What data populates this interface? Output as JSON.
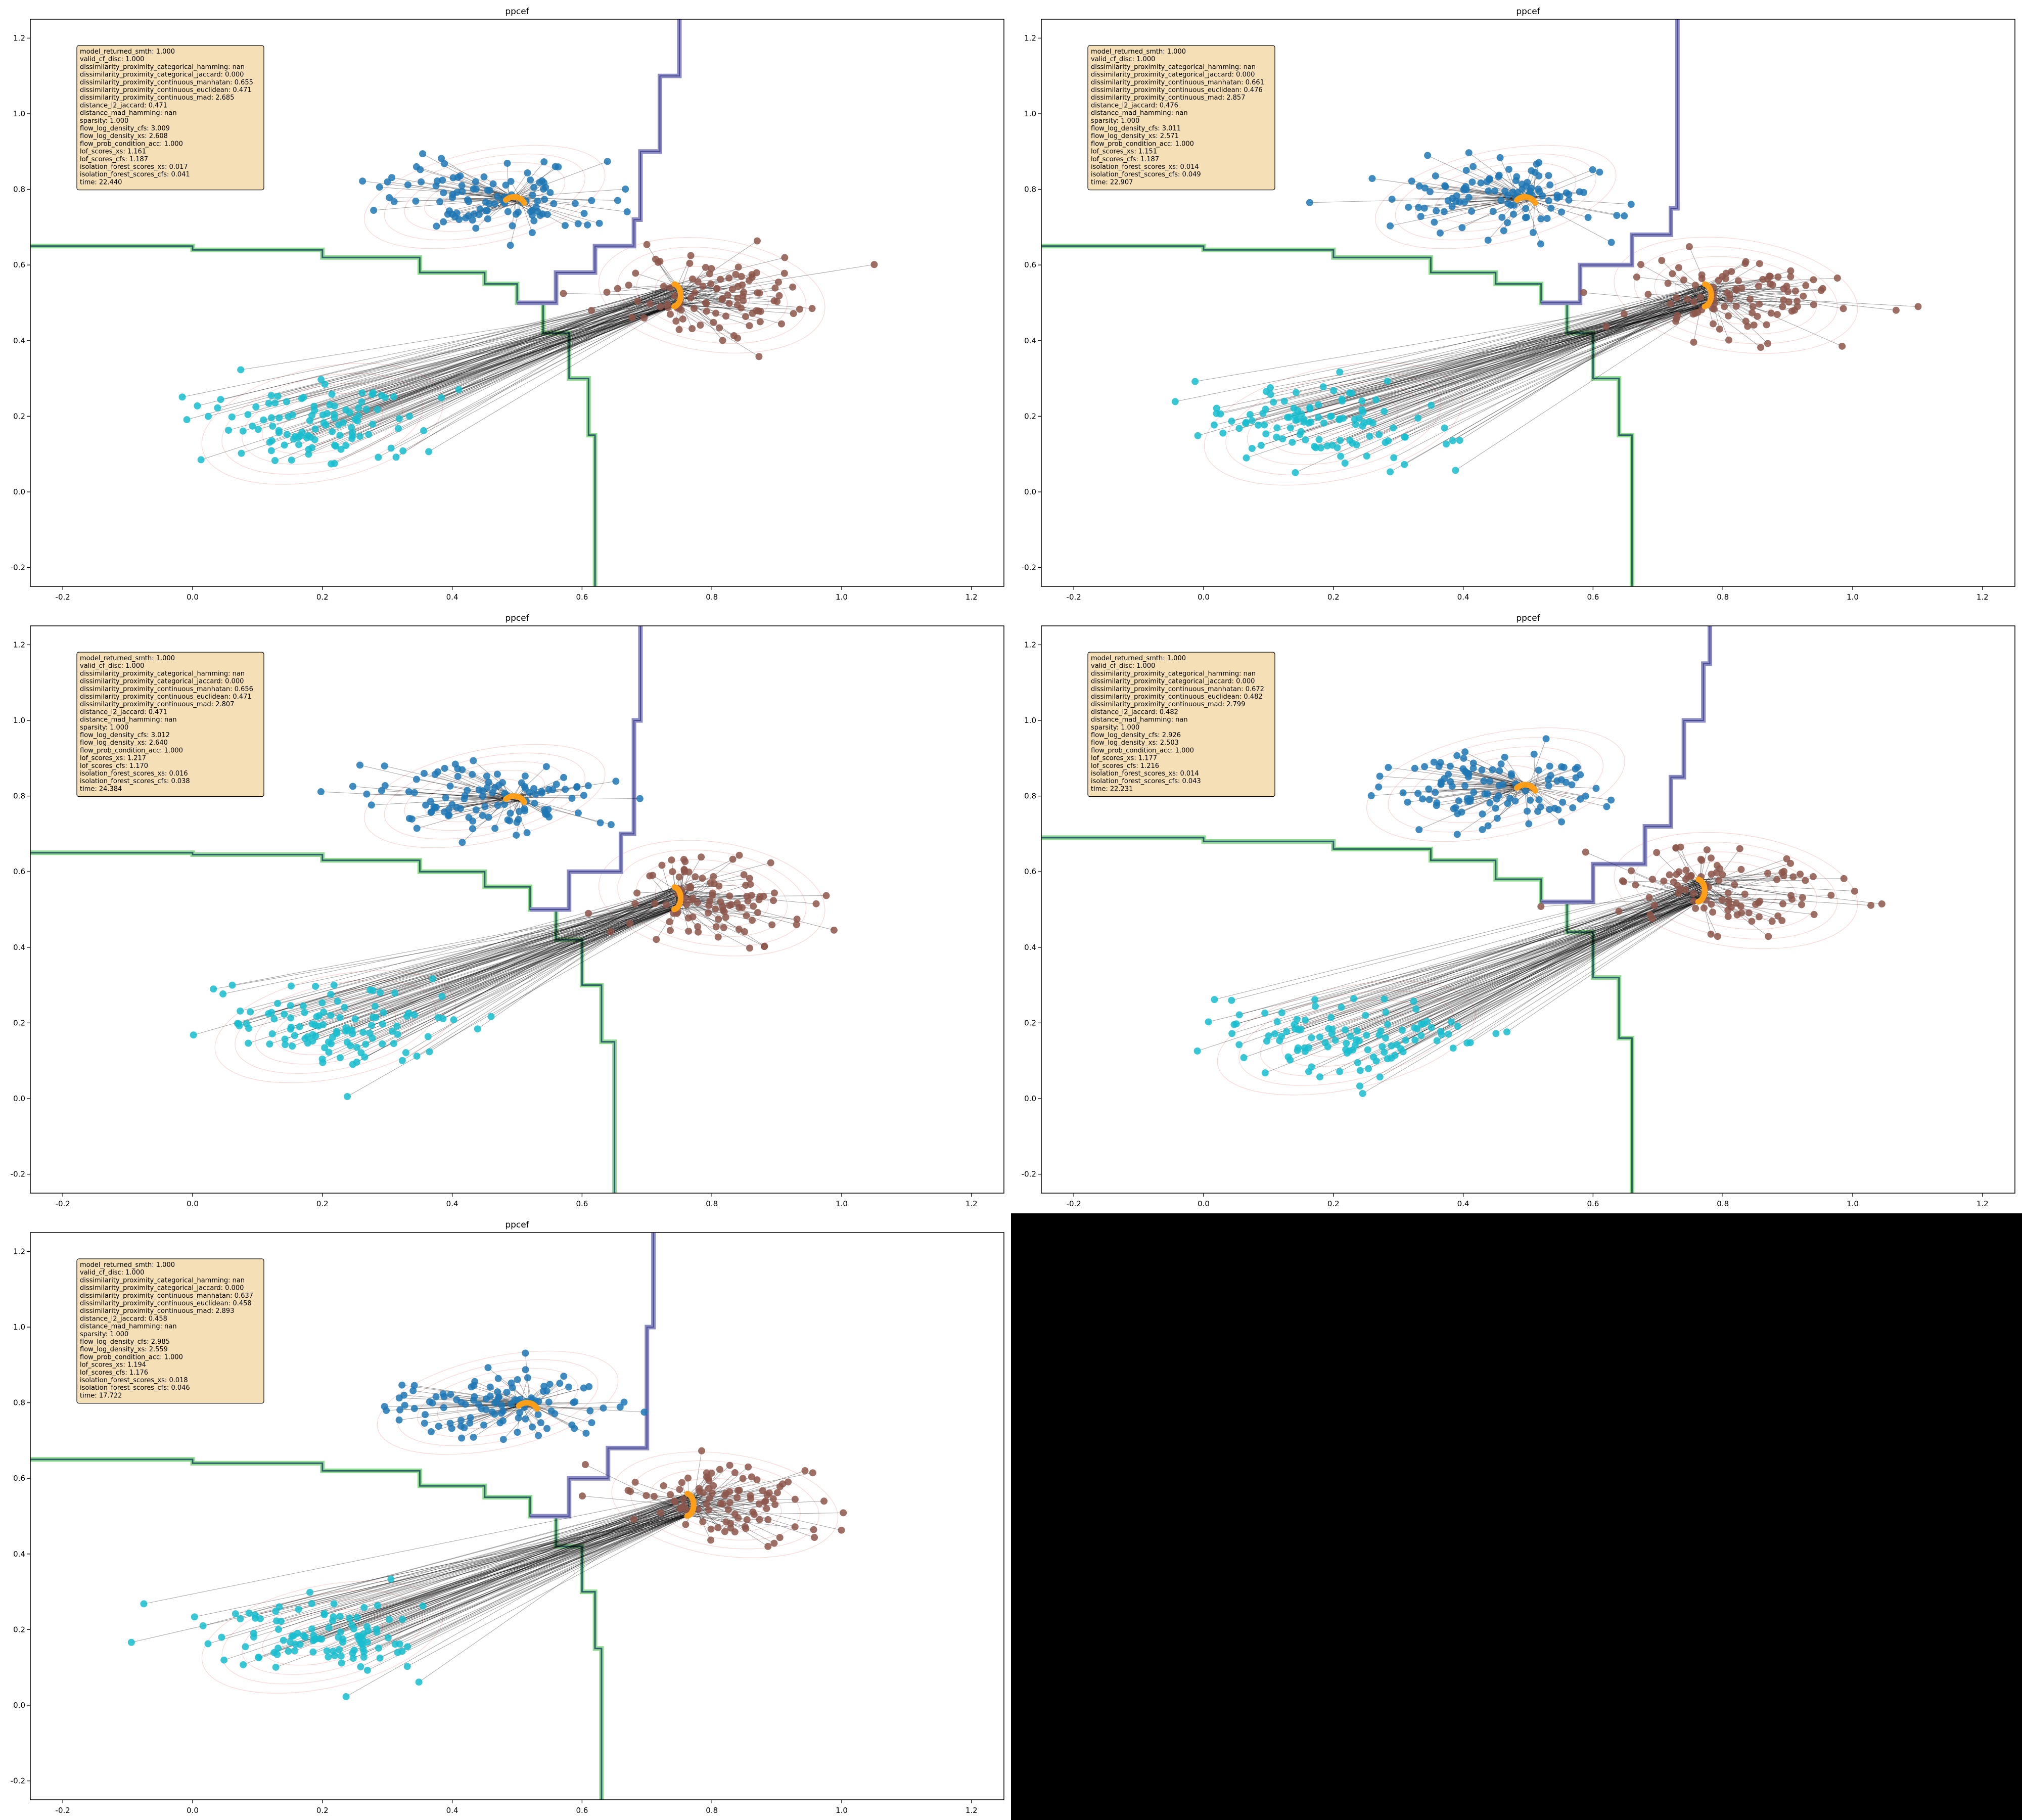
{
  "figure": {
    "background": "#ffffff",
    "empty_panel_color": "#000000"
  },
  "colors": {
    "class_0": "#1f77b4",
    "class_1": "#8c564b",
    "class_2": "#17becf",
    "counterfactual": "#ff9f1a",
    "arrow": "#000000",
    "boundary_purple": "#8c8cc4",
    "boundary_green": "#8fdc8f",
    "boundary_dark": "#2f5f6f",
    "density_contour": "#f4b4b4",
    "info_box_bg": "#f5deb3"
  },
  "chart_data": [
    {
      "type": "scatter",
      "title": "ppcef",
      "xlim": [
        -0.25,
        1.25
      ],
      "ylim": [
        -0.25,
        1.25
      ],
      "x_ticks": [
        "-0.2",
        "0.0",
        "0.2",
        "0.4",
        "0.6",
        "0.8",
        "1.0",
        "1.2"
      ],
      "y_ticks": [
        "-0.2",
        "0.0",
        "0.2",
        "0.4",
        "0.6",
        "0.8",
        "1.0",
        "1.2"
      ],
      "metrics": [
        "model_returned_smth: 1.000",
        "valid_cf_disc: 1.000",
        "dissimilarity_proximity_categorical_hamming: nan",
        "dissimilarity_proximity_categorical_jaccard: 0.000",
        "dissimilarity_proximity_continuous_manhatan: 0.655",
        "dissimilarity_proximity_continuous_euclidean: 0.471",
        "dissimilarity_proximity_continuous_mad: 2.685",
        "distance_l2_jaccard: 0.471",
        "distance_mad_hamming: nan",
        "sparsity: 1.000",
        "flow_log_density_cfs: 3.009",
        "flow_log_density_xs: 2.608",
        "flow_prob_condition_acc: 1.000",
        "lof_scores_xs: 1.161",
        "lof_scores_cfs: 1.187",
        "isolation_forest_scores_xs: 0.017",
        "isolation_forest_scores_cfs: 0.041",
        "time: 22.440"
      ],
      "clusters": [
        {
          "center": [
            0.45,
            0.78
          ],
          "spread": [
            0.07,
            0.045
          ],
          "n": 110
        },
        {
          "center": [
            0.8,
            0.52
          ],
          "spread": [
            0.065,
            0.055
          ],
          "n": 100
        },
        {
          "center": [
            0.2,
            0.18
          ],
          "spread": [
            0.07,
            0.055
          ],
          "n": 110
        }
      ],
      "cf_target_center": [
        0.75,
        0.52
      ],
      "boundary_green": [
        [
          -0.25,
          0.65
        ],
        [
          0.0,
          0.64
        ],
        [
          0.2,
          0.62
        ],
        [
          0.35,
          0.58
        ],
        [
          0.45,
          0.55
        ],
        [
          0.5,
          0.5
        ],
        [
          0.54,
          0.42
        ],
        [
          0.58,
          0.3
        ],
        [
          0.61,
          0.15
        ],
        [
          0.62,
          0.0
        ],
        [
          0.62,
          -0.25
        ]
      ],
      "boundary_purple": [
        [
          0.5,
          0.5
        ],
        [
          0.56,
          0.58
        ],
        [
          0.62,
          0.65
        ],
        [
          0.68,
          0.72
        ],
        [
          0.69,
          0.9
        ],
        [
          0.72,
          1.1
        ],
        [
          0.75,
          1.25
        ]
      ]
    },
    {
      "type": "scatter",
      "title": "ppcef",
      "xlim": [
        -0.25,
        1.25
      ],
      "ylim": [
        -0.25,
        1.25
      ],
      "x_ticks": [
        "-0.2",
        "0.0",
        "0.2",
        "0.4",
        "0.6",
        "0.8",
        "1.0",
        "1.2"
      ],
      "y_ticks": [
        "-0.2",
        "0.0",
        "0.2",
        "0.4",
        "0.6",
        "0.8",
        "1.0",
        "1.2"
      ],
      "metrics": [
        "model_returned_smth: 1.000",
        "valid_cf_disc: 1.000",
        "dissimilarity_proximity_categorical_hamming: nan",
        "dissimilarity_proximity_categorical_jaccard: 0.000",
        "dissimilarity_proximity_continuous_manhatan: 0.661",
        "dissimilarity_proximity_continuous_euclidean: 0.476",
        "dissimilarity_proximity_continuous_mad: 2.857",
        "distance_l2_jaccard: 0.476",
        "distance_mad_hamming: nan",
        "sparsity: 1.000",
        "flow_log_density_cfs: 3.011",
        "flow_log_density_xs: 2.571",
        "flow_prob_condition_acc: 1.000",
        "lof_scores_xs: 1.151",
        "lof_scores_cfs: 1.187",
        "isolation_forest_scores_xs: 0.014",
        "isolation_forest_scores_cfs: 0.049",
        "time: 22.907"
      ],
      "clusters": [
        {
          "center": [
            0.45,
            0.78
          ],
          "spread": [
            0.07,
            0.045
          ],
          "n": 110
        },
        {
          "center": [
            0.82,
            0.52
          ],
          "spread": [
            0.07,
            0.055
          ],
          "n": 100
        },
        {
          "center": [
            0.2,
            0.18
          ],
          "spread": [
            0.075,
            0.055
          ],
          "n": 110
        }
      ],
      "cf_target_center": [
        0.78,
        0.52
      ],
      "boundary_green": [
        [
          -0.25,
          0.65
        ],
        [
          0.0,
          0.64
        ],
        [
          0.2,
          0.62
        ],
        [
          0.35,
          0.58
        ],
        [
          0.45,
          0.55
        ],
        [
          0.52,
          0.5
        ],
        [
          0.56,
          0.42
        ],
        [
          0.6,
          0.3
        ],
        [
          0.64,
          0.15
        ],
        [
          0.66,
          0.0
        ],
        [
          0.66,
          -0.25
        ]
      ],
      "boundary_purple": [
        [
          0.52,
          0.5
        ],
        [
          0.58,
          0.6
        ],
        [
          0.66,
          0.68
        ],
        [
          0.72,
          0.75
        ],
        [
          0.73,
          0.95
        ],
        [
          0.73,
          1.25
        ]
      ]
    },
    {
      "type": "scatter",
      "title": "ppcef",
      "xlim": [
        -0.25,
        1.25
      ],
      "ylim": [
        -0.25,
        1.25
      ],
      "x_ticks": [
        "-0.2",
        "0.0",
        "0.2",
        "0.4",
        "0.6",
        "0.8",
        "1.0",
        "1.2"
      ],
      "y_ticks": [
        "-0.2",
        "0.0",
        "0.2",
        "0.4",
        "0.6",
        "0.8",
        "1.0",
        "1.2"
      ],
      "metrics": [
        "model_returned_smth: 1.000",
        "valid_cf_disc: 1.000",
        "dissimilarity_proximity_categorical_hamming: nan",
        "dissimilarity_proximity_categorical_jaccard: 0.000",
        "dissimilarity_proximity_continuous_manhatan: 0.656",
        "dissimilarity_proximity_continuous_euclidean: 0.471",
        "dissimilarity_proximity_continuous_mad: 2.807",
        "distance_l2_jaccard: 0.471",
        "distance_mad_hamming: nan",
        "sparsity: 1.000",
        "flow_log_density_cfs: 3.012",
        "flow_log_density_xs: 2.640",
        "flow_prob_condition_acc: 1.000",
        "lof_scores_xs: 1.217",
        "lof_scores_cfs: 1.170",
        "isolation_forest_scores_xs: 0.016",
        "isolation_forest_scores_cfs: 0.038",
        "time: 24.384"
      ],
      "clusters": [
        {
          "center": [
            0.45,
            0.8
          ],
          "spread": [
            0.07,
            0.045
          ],
          "n": 110
        },
        {
          "center": [
            0.8,
            0.53
          ],
          "spread": [
            0.065,
            0.055
          ],
          "n": 100
        },
        {
          "center": [
            0.22,
            0.19
          ],
          "spread": [
            0.07,
            0.05
          ],
          "n": 110
        }
      ],
      "cf_target_center": [
        0.75,
        0.53
      ],
      "boundary_green": [
        [
          -0.25,
          0.65
        ],
        [
          0.0,
          0.645
        ],
        [
          0.2,
          0.63
        ],
        [
          0.35,
          0.6
        ],
        [
          0.45,
          0.56
        ],
        [
          0.52,
          0.5
        ],
        [
          0.56,
          0.42
        ],
        [
          0.6,
          0.3
        ],
        [
          0.63,
          0.15
        ],
        [
          0.65,
          0.0
        ],
        [
          0.65,
          -0.25
        ]
      ],
      "boundary_purple": [
        [
          0.52,
          0.5
        ],
        [
          0.58,
          0.6
        ],
        [
          0.66,
          0.7
        ],
        [
          0.68,
          0.75
        ],
        [
          0.68,
          1.0
        ],
        [
          0.69,
          1.25
        ]
      ]
    },
    {
      "type": "scatter",
      "title": "ppcef",
      "xlim": [
        -0.25,
        1.25
      ],
      "ylim": [
        -0.25,
        1.25
      ],
      "x_ticks": [
        "-0.2",
        "0.0",
        "0.2",
        "0.4",
        "0.6",
        "0.8",
        "1.0",
        "1.2"
      ],
      "y_ticks": [
        "-0.2",
        "0.0",
        "0.2",
        "0.4",
        "0.6",
        "0.8",
        "1.0",
        "1.2"
      ],
      "metrics": [
        "model_returned_smth: 1.000",
        "valid_cf_disc: 1.000",
        "dissimilarity_proximity_categorical_hamming: nan",
        "dissimilarity_proximity_categorical_jaccard: 0.000",
        "dissimilarity_proximity_continuous_manhatan: 0.672",
        "dissimilarity_proximity_continuous_euclidean: 0.482",
        "dissimilarity_proximity_continuous_mad: 2.799",
        "distance_l2_jaccard: 0.482",
        "distance_mad_hamming: nan",
        "sparsity: 1.000",
        "flow_log_density_cfs: 2.926",
        "flow_log_density_xs: 2.503",
        "flow_prob_condition_acc: 1.000",
        "lof_scores_xs: 1.177",
        "lof_scores_cfs: 1.216",
        "isolation_forest_scores_xs: 0.014",
        "isolation_forest_scores_cfs: 0.043",
        "time: 22.231"
      ],
      "clusters": [
        {
          "center": [
            0.45,
            0.83
          ],
          "spread": [
            0.075,
            0.05
          ],
          "n": 110
        },
        {
          "center": [
            0.82,
            0.55
          ],
          "spread": [
            0.07,
            0.055
          ],
          "n": 100
        },
        {
          "center": [
            0.22,
            0.16
          ],
          "spread": [
            0.075,
            0.05
          ],
          "n": 110
        }
      ],
      "cf_target_center": [
        0.77,
        0.55
      ],
      "boundary_green": [
        [
          -0.25,
          0.69
        ],
        [
          0.0,
          0.68
        ],
        [
          0.2,
          0.66
        ],
        [
          0.35,
          0.63
        ],
        [
          0.45,
          0.58
        ],
        [
          0.52,
          0.52
        ],
        [
          0.56,
          0.44
        ],
        [
          0.6,
          0.32
        ],
        [
          0.64,
          0.16
        ],
        [
          0.66,
          0.0
        ],
        [
          0.66,
          -0.25
        ]
      ],
      "boundary_purple": [
        [
          0.52,
          0.52
        ],
        [
          0.6,
          0.62
        ],
        [
          0.68,
          0.72
        ],
        [
          0.72,
          0.85
        ],
        [
          0.74,
          1.0
        ],
        [
          0.77,
          1.15
        ],
        [
          0.78,
          1.25
        ]
      ]
    },
    {
      "type": "scatter",
      "title": "ppcef",
      "xlim": [
        -0.25,
        1.25
      ],
      "ylim": [
        -0.25,
        1.25
      ],
      "x_ticks": [
        "-0.2",
        "0.0",
        "0.2",
        "0.4",
        "0.6",
        "0.8",
        "1.0",
        "1.2"
      ],
      "y_ticks": [
        "-0.2",
        "0.0",
        "0.2",
        "0.4",
        "0.6",
        "0.8",
        "1.0",
        "1.2"
      ],
      "metrics": [
        "model_returned_smth: 1.000",
        "valid_cf_disc: 1.000",
        "dissimilarity_proximity_categorical_hamming: nan",
        "dissimilarity_proximity_categorical_jaccard: 0.000",
        "dissimilarity_proximity_continuous_manhatan: 0.637",
        "dissimilarity_proximity_continuous_euclidean: 0.458",
        "dissimilarity_proximity_continuous_mad: 2.893",
        "distance_l2_jaccard: 0.458",
        "distance_mad_hamming: nan",
        "sparsity: 1.000",
        "flow_log_density_cfs: 2.985",
        "flow_log_density_xs: 2.559",
        "flow_prob_condition_acc: 1.000",
        "lof_scores_xs: 1.194",
        "lof_scores_cfs: 1.176",
        "isolation_forest_scores_xs: 0.018",
        "isolation_forest_scores_cfs: 0.046",
        "time: 17.722"
      ],
      "clusters": [
        {
          "center": [
            0.47,
            0.8
          ],
          "spread": [
            0.07,
            0.045
          ],
          "n": 110
        },
        {
          "center": [
            0.82,
            0.53
          ],
          "spread": [
            0.065,
            0.05
          ],
          "n": 100
        },
        {
          "center": [
            0.2,
            0.18
          ],
          "spread": [
            0.07,
            0.05
          ],
          "n": 110
        }
      ],
      "cf_target_center": [
        0.77,
        0.53
      ],
      "boundary_green": [
        [
          -0.25,
          0.65
        ],
        [
          0.0,
          0.64
        ],
        [
          0.2,
          0.62
        ],
        [
          0.35,
          0.58
        ],
        [
          0.45,
          0.55
        ],
        [
          0.52,
          0.5
        ],
        [
          0.56,
          0.42
        ],
        [
          0.6,
          0.3
        ],
        [
          0.62,
          0.15
        ],
        [
          0.63,
          0.0
        ],
        [
          0.63,
          -0.25
        ]
      ],
      "boundary_purple": [
        [
          0.52,
          0.5
        ],
        [
          0.58,
          0.6
        ],
        [
          0.64,
          0.68
        ],
        [
          0.7,
          0.75
        ],
        [
          0.7,
          1.0
        ],
        [
          0.71,
          1.25
        ]
      ]
    }
  ]
}
